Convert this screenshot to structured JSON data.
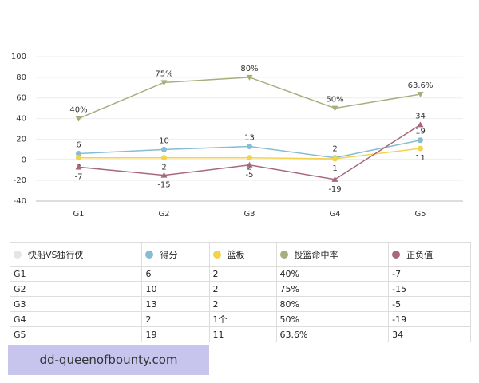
{
  "chart_data": {
    "type": "line",
    "categories": [
      "G1",
      "G2",
      "G3",
      "G4",
      "G5"
    ],
    "series": [
      {
        "name": "得分",
        "color": "#86bdd3",
        "marker": "circle",
        "values": [
          6,
          10,
          13,
          2,
          19
        ]
      },
      {
        "name": "篮板",
        "color": "#f3d34a",
        "marker": "circle",
        "values": [
          2,
          2,
          2,
          1,
          11
        ]
      },
      {
        "name": "投篮命中率",
        "color": "#a3b07e",
        "marker": "triangle-down",
        "values": [
          40,
          75,
          80,
          50,
          63.6
        ],
        "value_labels": [
          "40%",
          "75%",
          "80%",
          "50%",
          "63.6%"
        ]
      },
      {
        "name": "正负值",
        "color": "#a8687a",
        "marker": "triangle-up",
        "values": [
          -7,
          -15,
          -5,
          -19,
          34
        ]
      }
    ],
    "ylim": [
      -40,
      100
    ],
    "yticks": [
      -40,
      -20,
      0,
      20,
      40,
      60,
      80,
      100
    ],
    "grid": true
  },
  "table": {
    "header": [
      "快船VS独行侠",
      "得分",
      "篮板",
      "投篮命中率",
      "正负值"
    ],
    "rows": [
      [
        "G1",
        "6",
        "2",
        "40%",
        "-7"
      ],
      [
        "G2",
        "10",
        "2",
        "75%",
        "-15"
      ],
      [
        "G3",
        "13",
        "2",
        "80%",
        "-5"
      ],
      [
        "G4",
        "2",
        "1个",
        "50%",
        "-19"
      ],
      [
        "G5",
        "19",
        "11",
        "63.6%",
        "34"
      ]
    ]
  },
  "watermark": "dd-queenofbounty.com"
}
